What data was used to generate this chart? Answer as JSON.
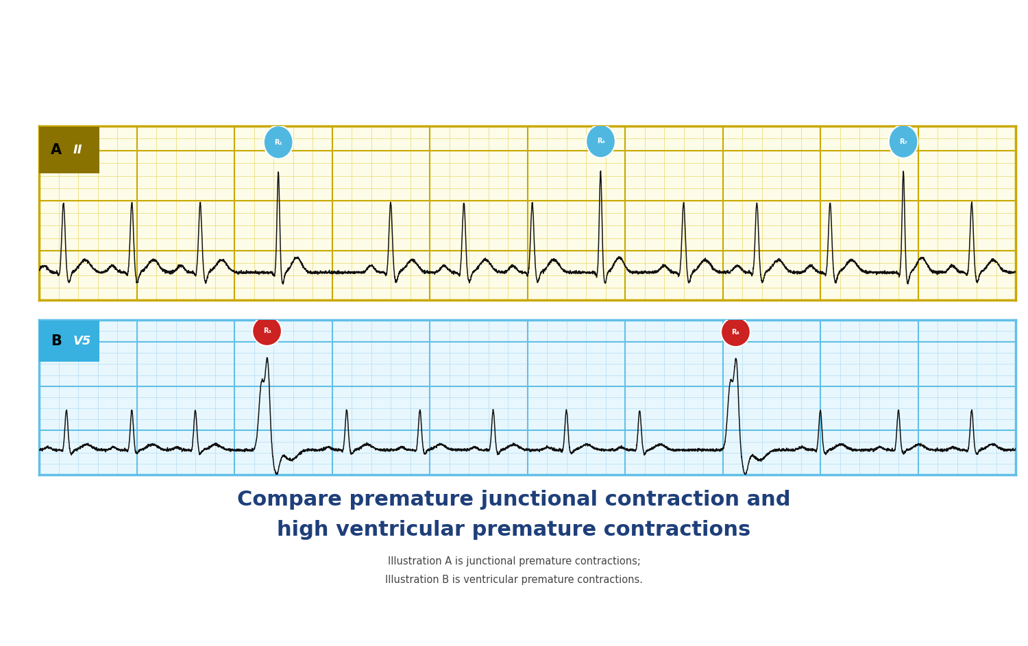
{
  "title_line1": "Compare premature junctional contraction and",
  "title_line2": "high ventricular premature contractions",
  "subtitle_line1": "Illustration A is junctional premature contractions;",
  "subtitle_line2": "Illustration B is ventricular premature contractions.",
  "panel_A_label": "A",
  "panel_A_lead": "II",
  "panel_B_label": "B",
  "panel_B_lead": "V5",
  "panel_A_bg": "#fdfce8",
  "panel_A_border": "#c9a800",
  "panel_A_grid_major": "#c9a800",
  "panel_A_grid_minor": "#e8d86a",
  "panel_A_label_bg": "#8a7200",
  "panel_B_bg": "#e8f7fd",
  "panel_B_border": "#60c0e8",
  "panel_B_grid_major": "#60c0e8",
  "panel_B_grid_minor": "#b0ddf5",
  "panel_B_label_bg": "#38b0e0",
  "ecg_color": "#111111",
  "title_color": "#1e3f7a",
  "subtitle_color": "#444444",
  "marker_A_color": "#50b8e0",
  "marker_B_color": "#cc2222",
  "shutterstock_bg": "#2b3542",
  "background_color": "#ffffff"
}
